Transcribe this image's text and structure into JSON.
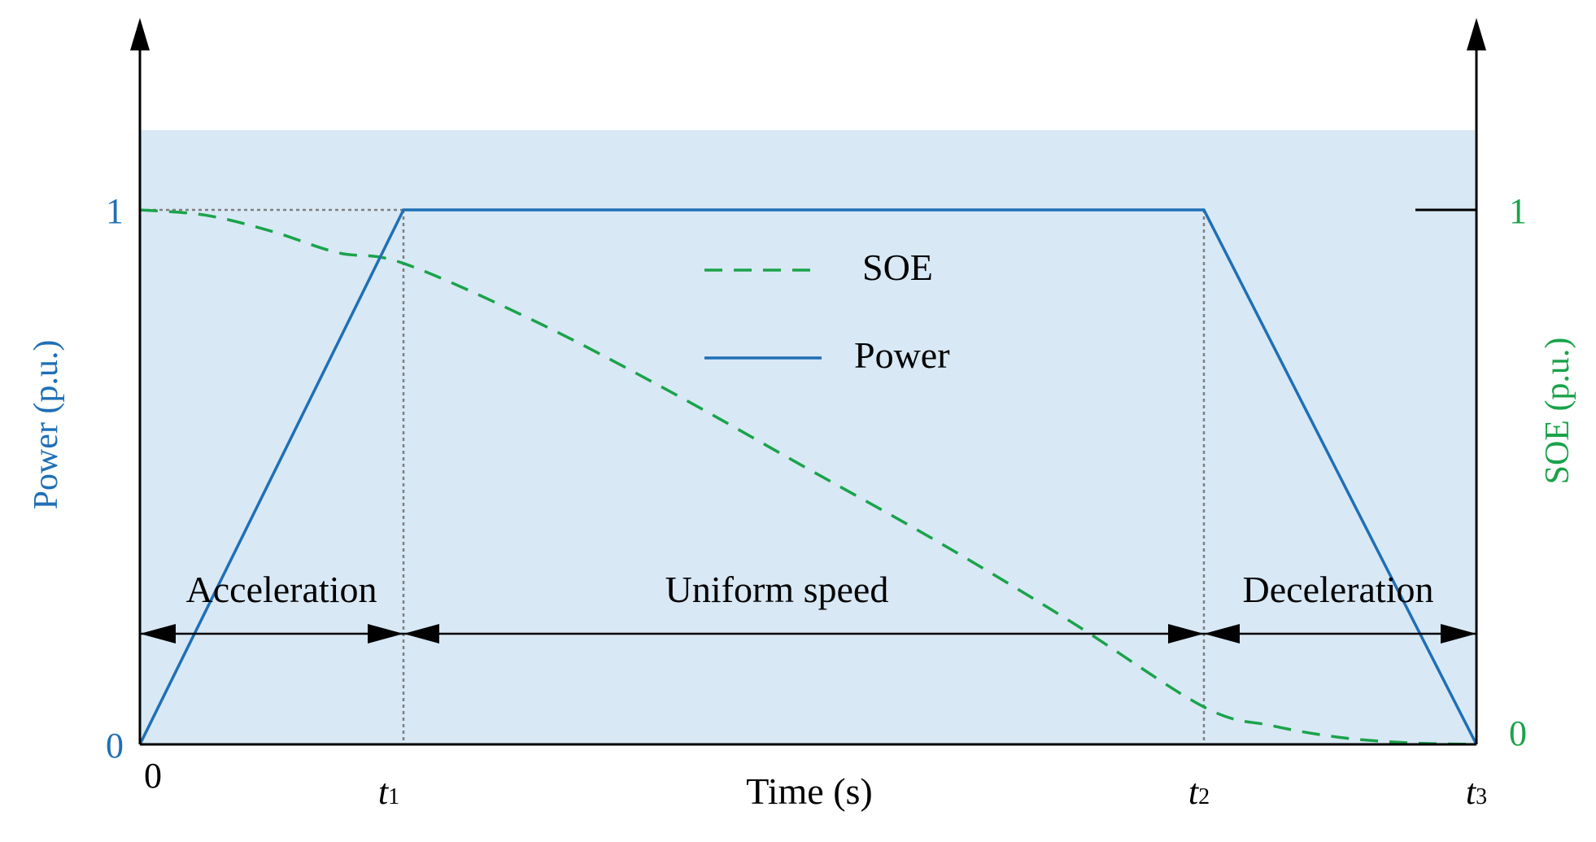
{
  "colors": {
    "power": "#1f6fb5",
    "soe": "#1aa34a",
    "background": "#d8e8f5",
    "axis": "#000000",
    "guide": "#7f7f7f"
  },
  "axes": {
    "xlabel": "Time (s)",
    "ylabel_left": "Power (p.u.)",
    "ylabel_right": "SOE (p.u.)",
    "x_ticks": [
      {
        "main": "0",
        "sub": ""
      },
      {
        "main": "t",
        "sub": "1"
      },
      {
        "main": "t",
        "sub": "2"
      },
      {
        "main": "t",
        "sub": "3"
      }
    ],
    "y_left_ticks": [
      "0",
      "1"
    ],
    "y_right_ticks": [
      "0",
      "1"
    ]
  },
  "legend": {
    "items": [
      {
        "label": "SOE",
        "style": "dashed",
        "color": "#1aa34a"
      },
      {
        "label": "Power",
        "style": "solid",
        "color": "#1f6fb5"
      }
    ]
  },
  "phases": [
    {
      "label": "Acceleration",
      "from": "0",
      "to": "t1"
    },
    {
      "label": "Uniform speed",
      "from": "t1",
      "to": "t2"
    },
    {
      "label": "Deceleration",
      "from": "t2",
      "to": "t3"
    }
  ],
  "chart_data": {
    "type": "line",
    "title": "",
    "xlabel": "Time (s)",
    "ylabel": "Power (p.u.)",
    "y2label": "SOE (p.u.)",
    "x_tick_labels": [
      "0",
      "t1",
      "t2",
      "t3"
    ],
    "x_tick_positions": [
      0,
      1,
      4,
      5
    ],
    "xlim": [
      0,
      5
    ],
    "ylim": [
      0,
      1.15
    ],
    "y2lim": [
      0,
      1.15
    ],
    "grid": false,
    "legend_position": "top-center",
    "series": [
      {
        "name": "Power",
        "axis": "left",
        "style": "solid",
        "x": [
          0,
          1,
          4,
          5
        ],
        "y": [
          0,
          1,
          1,
          0
        ]
      },
      {
        "name": "SOE",
        "axis": "right",
        "style": "dashed",
        "x": [
          0,
          0.25,
          0.5,
          0.75,
          1,
          1.5,
          2,
          2.5,
          3,
          3.5,
          4,
          4.25,
          4.5,
          4.75,
          5
        ],
        "y": [
          1,
          0.99,
          0.96,
          0.92,
          0.9,
          0.79,
          0.66,
          0.52,
          0.38,
          0.23,
          0.07,
          0.035,
          0.013,
          0.003,
          0
        ]
      }
    ]
  }
}
